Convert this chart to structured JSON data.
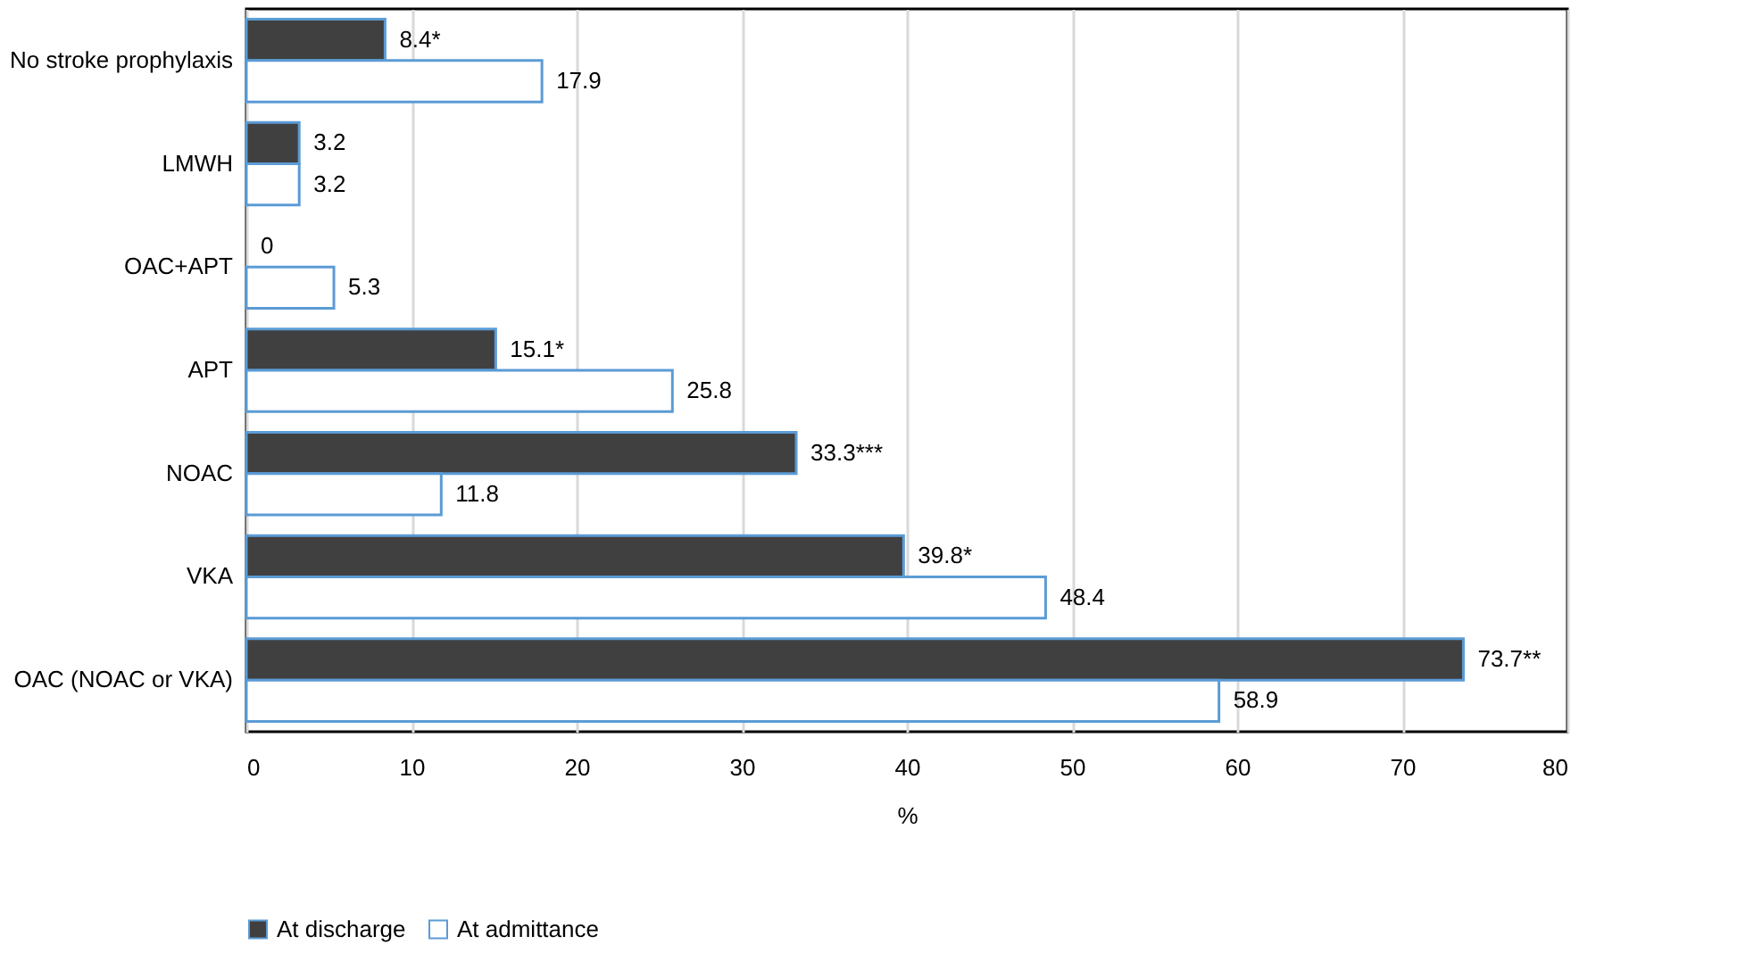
{
  "chart_data": {
    "type": "bar",
    "orientation": "horizontal",
    "xlabel": "%",
    "categories": [
      "No stroke prophylaxis",
      "LMWH",
      "OAC+APT",
      "APT",
      "NOAC",
      "VKA",
      "OAC (NOAC or VKA)"
    ],
    "series": [
      {
        "name": "At discharge",
        "color": "#404040",
        "values": [
          8.4,
          3.2,
          0,
          15.1,
          33.3,
          39.8,
          73.7
        ],
        "value_labels": [
          "8.4*",
          "3.2",
          "0",
          "15.1*",
          "33.3***",
          "39.8*",
          "73.7**"
        ]
      },
      {
        "name": "At admittance",
        "color": "#ffffff",
        "values": [
          17.9,
          3.2,
          5.3,
          25.8,
          11.8,
          48.4,
          58.9
        ],
        "value_labels": [
          "17.9",
          "3.2",
          "5.3",
          "25.8",
          "11.8",
          "48.4",
          "58.9"
        ]
      }
    ],
    "xlim": [
      0,
      80
    ],
    "xticks": [
      0,
      10,
      20,
      30,
      40,
      50,
      60,
      70,
      80
    ],
    "grid": "x",
    "legend": "bottom"
  }
}
